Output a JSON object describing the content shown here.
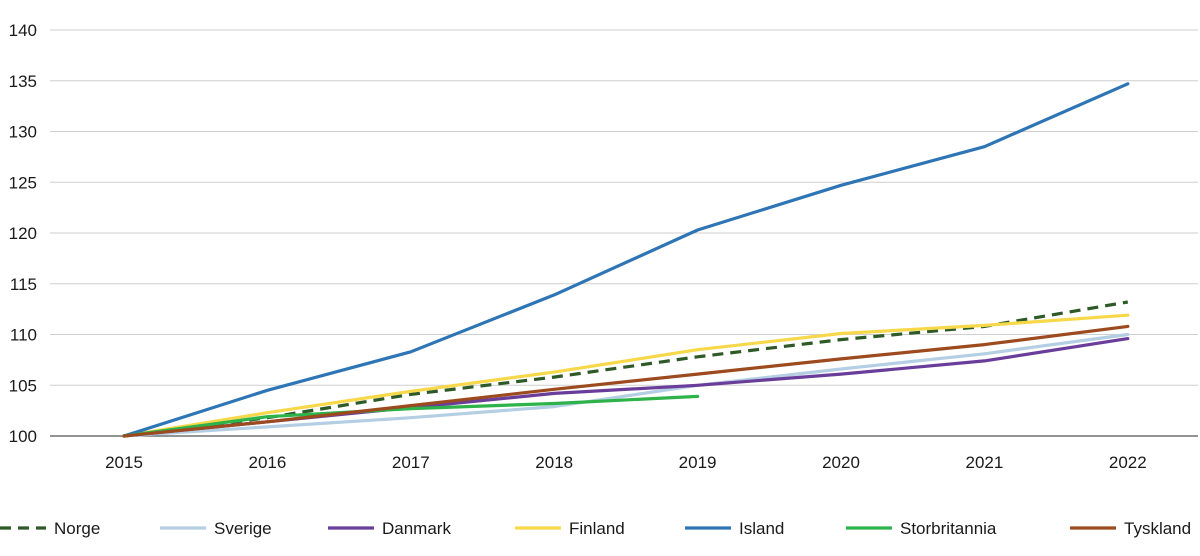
{
  "chart_data": {
    "type": "line",
    "title": "",
    "xlabel": "",
    "ylabel": "",
    "x": [
      "2015",
      "2016",
      "2017",
      "2018",
      "2019",
      "2020",
      "2021",
      "2022"
    ],
    "ylim": [
      100,
      140
    ],
    "yticks": [
      100,
      105,
      110,
      115,
      120,
      125,
      130,
      135,
      140
    ],
    "grid": "horizontal",
    "legend_position": "bottom",
    "series": [
      {
        "name": "Norge",
        "color": "#2e5a27",
        "dashed": true,
        "values": [
          100,
          101.8,
          104.1,
          105.8,
          107.8,
          109.5,
          110.8,
          113.2
        ]
      },
      {
        "name": "Sverige",
        "color": "#b4cfe3",
        "dashed": false,
        "values": [
          100,
          100.9,
          101.8,
          102.9,
          105.0,
          106.6,
          108.1,
          110.0
        ]
      },
      {
        "name": "Danmark",
        "color": "#6a3d9a",
        "dashed": false,
        "values": [
          100,
          101.4,
          102.8,
          104.2,
          105.0,
          106.1,
          107.4,
          109.6
        ]
      },
      {
        "name": "Finland",
        "color": "#f7d84a",
        "dashed": false,
        "values": [
          100,
          102.3,
          104.4,
          106.3,
          108.5,
          110.1,
          110.9,
          111.9
        ]
      },
      {
        "name": "Island",
        "color": "#2e75b6",
        "dashed": false,
        "values": [
          100,
          104.5,
          108.3,
          113.9,
          120.3,
          124.7,
          128.5,
          134.7
        ]
      },
      {
        "name": "Storbritannia",
        "color": "#2db34a",
        "dashed": false,
        "values": [
          100,
          101.9,
          102.7,
          103.2,
          103.9,
          null,
          null,
          null
        ]
      },
      {
        "name": "Tyskland",
        "color": "#9c4a1e",
        "dashed": false,
        "values": [
          100,
          101.4,
          103.0,
          104.6,
          106.1,
          107.6,
          109.0,
          110.8
        ]
      }
    ]
  }
}
